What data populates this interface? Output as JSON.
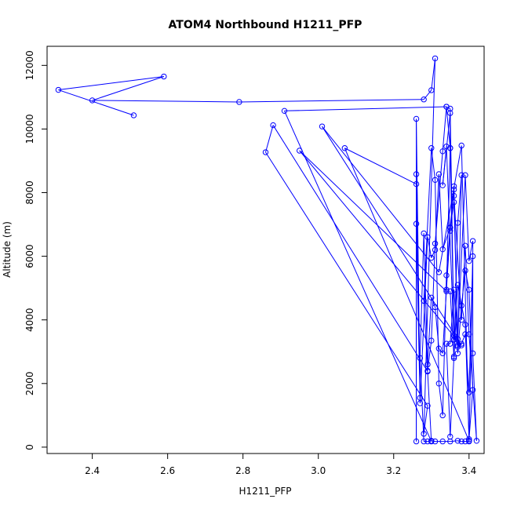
{
  "chart_data": {
    "type": "scatter",
    "title": "ATOM4 Northbound H1211_PFP",
    "xlabel": "H1211_PFP",
    "ylabel": "Altitude (m)",
    "xlim": [
      2.28,
      3.44
    ],
    "ylim": [
      -200,
      12600
    ],
    "xticks": [
      "2.4",
      "2.6",
      "2.8",
      "3.0",
      "3.2",
      "3.4"
    ],
    "yticks": [
      "0",
      "2000",
      "4000",
      "6000",
      "8000",
      "10000",
      "12000"
    ],
    "grid": false,
    "legend": "none",
    "series_color": "#0000ff",
    "series": [
      {
        "points": [
          [
            2.51,
            10430
          ],
          [
            2.31,
            11230
          ],
          [
            2.59,
            11650
          ],
          [
            2.4,
            10900
          ],
          [
            2.79,
            10850
          ],
          [
            3.28,
            10930
          ],
          [
            3.3,
            11220
          ],
          [
            3.31,
            12220
          ],
          [
            3.28,
            420
          ],
          [
            3.29,
            1300
          ],
          [
            2.86,
            9270
          ],
          [
            2.88,
            10120
          ],
          [
            3.29,
            2380
          ],
          [
            3.3,
            180
          ],
          [
            2.91,
            10570
          ],
          [
            3.34,
            10700
          ],
          [
            3.35,
            10640
          ],
          [
            3.36,
            3380
          ],
          [
            3.34,
            9450
          ],
          [
            3.33,
            8230
          ],
          [
            3.35,
            10500
          ],
          [
            3.35,
            9400
          ],
          [
            3.34,
            4900
          ],
          [
            2.95,
            9320
          ],
          [
            3.38,
            3200
          ],
          [
            3.01,
            10080
          ],
          [
            3.32,
            5500
          ],
          [
            3.38,
            9480
          ],
          [
            3.4,
            200
          ],
          [
            3.07,
            9400
          ],
          [
            3.26,
            8270
          ],
          [
            3.26,
            8580
          ],
          [
            3.27,
            1550
          ],
          [
            3.26,
            10320
          ],
          [
            3.26,
            180
          ],
          [
            3.26,
            7020
          ],
          [
            3.27,
            1380
          ],
          [
            3.29,
            6600
          ],
          [
            3.3,
            5950
          ],
          [
            3.31,
            6200
          ],
          [
            3.32,
            8580
          ],
          [
            3.33,
            6220
          ],
          [
            3.35,
            6900
          ],
          [
            3.36,
            7700
          ],
          [
            3.37,
            3400
          ],
          [
            3.39,
            8550
          ],
          [
            3.4,
            5850
          ],
          [
            3.41,
            6480
          ],
          [
            3.41,
            2950
          ],
          [
            3.42,
            200
          ],
          [
            3.4,
            3550
          ],
          [
            3.39,
            6330
          ],
          [
            3.38,
            4000
          ],
          [
            3.36,
            7900
          ],
          [
            3.36,
            8100
          ],
          [
            3.35,
            6800
          ],
          [
            3.34,
            4950
          ],
          [
            3.33,
            2950
          ],
          [
            3.32,
            3100
          ],
          [
            3.31,
            4400
          ],
          [
            3.3,
            4700
          ],
          [
            3.29,
            2600
          ],
          [
            3.28,
            6720
          ],
          [
            3.27,
            2800
          ],
          [
            3.28,
            180
          ],
          [
            3.29,
            180
          ],
          [
            3.3,
            200
          ],
          [
            3.31,
            180
          ],
          [
            3.33,
            180
          ],
          [
            3.35,
            180
          ],
          [
            3.37,
            200
          ],
          [
            3.38,
            180
          ],
          [
            3.39,
            180
          ],
          [
            3.4,
            180
          ],
          [
            3.41,
            6000
          ],
          [
            3.4,
            1720
          ],
          [
            3.39,
            3550
          ],
          [
            3.38,
            3250
          ],
          [
            3.37,
            3150
          ],
          [
            3.36,
            4950
          ],
          [
            3.35,
            3250
          ],
          [
            3.34,
            3250
          ],
          [
            3.35,
            330
          ],
          [
            3.36,
            2850
          ],
          [
            3.37,
            7050
          ],
          [
            3.38,
            8550
          ],
          [
            3.37,
            3200
          ],
          [
            3.36,
            3500
          ],
          [
            3.35,
            9400
          ],
          [
            3.34,
            10700
          ],
          [
            3.33,
            9300
          ],
          [
            3.31,
            6400
          ],
          [
            3.3,
            3350
          ],
          [
            3.29,
            2400
          ],
          [
            3.28,
            4600
          ],
          [
            3.3,
            9400
          ],
          [
            3.31,
            8400
          ],
          [
            3.32,
            2000
          ],
          [
            3.33,
            1000
          ],
          [
            3.34,
            5400
          ],
          [
            3.35,
            6900
          ],
          [
            3.36,
            8200
          ],
          [
            3.37,
            2950
          ],
          [
            3.38,
            4450
          ],
          [
            3.39,
            5550
          ],
          [
            3.4,
            4950
          ],
          [
            3.41,
            1800
          ],
          [
            3.4,
            250
          ],
          [
            3.39,
            3850
          ],
          [
            3.37,
            5100
          ],
          [
            3.36,
            2800
          ],
          [
            3.35,
            4900
          ]
        ]
      }
    ]
  }
}
